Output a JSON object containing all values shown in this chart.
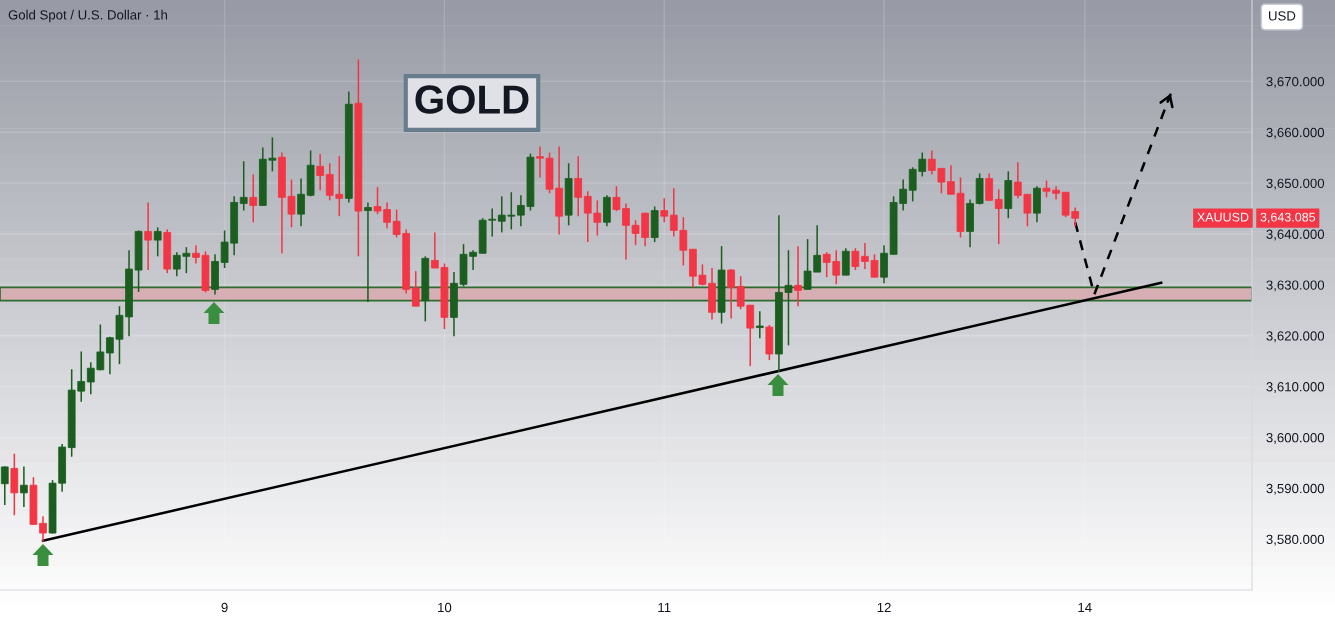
{
  "chart_data": {
    "type": "candlestick",
    "title": "Gold Spot / U.S. Dollar · 1h",
    "categories": [
      null,
      null,
      null,
      null,
      null,
      null,
      null,
      null,
      null,
      null,
      null,
      null,
      null,
      null,
      null,
      null,
      null,
      null,
      null,
      null,
      null,
      null,
      null,
      "9",
      null,
      null,
      null,
      null,
      null,
      null,
      null,
      null,
      null,
      null,
      null,
      null,
      null,
      null,
      null,
      null,
      null,
      null,
      null,
      null,
      null,
      null,
      "10",
      null,
      null,
      null,
      null,
      null,
      null,
      null,
      null,
      null,
      null,
      null,
      null,
      null,
      null,
      null,
      null,
      null,
      null,
      null,
      null,
      null,
      null,
      "11",
      null,
      null,
      null,
      null,
      null,
      null,
      null,
      null,
      null,
      null,
      null,
      null,
      null,
      null,
      null,
      null,
      null,
      null,
      null,
      null,
      null,
      null,
      "12",
      null,
      null,
      null,
      null,
      null,
      null,
      null,
      null,
      null,
      null,
      null,
      null,
      null,
      null,
      null,
      null,
      null,
      null,
      null,
      null,
      "14",
      null,
      null,
      null,
      null,
      null,
      null,
      null,
      null,
      null,
      null,
      null,
      null,
      null,
      null,
      null,
      null,
      null
    ],
    "ohlc": [
      [
        3590.9,
        3594.3,
        3586.7,
        3594.2
      ],
      [
        3593.9,
        3596.8,
        3584.7,
        3589.1
      ],
      [
        3589.1,
        3594.3,
        3586.3,
        3590.6
      ],
      [
        3590.6,
        3592.2,
        3582.8,
        3582.9
      ],
      [
        3583.1,
        3584.5,
        3579.5,
        3581.2
      ],
      [
        3581.2,
        3591.6,
        3581.1,
        3591.0
      ],
      [
        3591.0,
        3598.7,
        3589.3,
        3598.1
      ],
      [
        3598.0,
        3613.4,
        3596.2,
        3609.3
      ],
      [
        3609.1,
        3616.9,
        3607.0,
        3611.0
      ],
      [
        3610.9,
        3614.8,
        3608.5,
        3613.6
      ],
      [
        3613.3,
        3622.2,
        3613.2,
        3616.8
      ],
      [
        3616.6,
        3619.8,
        3612.4,
        3619.6
      ],
      [
        3619.3,
        3625.8,
        3614.4,
        3624.0
      ],
      [
        3623.7,
        3636.8,
        3619.9,
        3633.1
      ],
      [
        3632.9,
        3640.7,
        3628.6,
        3640.5
      ],
      [
        3640.5,
        3646.2,
        3632.9,
        3638.8
      ],
      [
        3638.8,
        3641.3,
        3635.6,
        3640.5
      ],
      [
        3640.3,
        3640.9,
        3632.3,
        3633.1
      ],
      [
        3633.1,
        3636.4,
        3631.7,
        3635.8
      ],
      [
        3635.6,
        3637.4,
        3632.3,
        3636.2
      ],
      [
        3636.2,
        3637.8,
        3634.2,
        3635.4
      ],
      [
        3635.8,
        3636.6,
        3628.5,
        3628.9
      ],
      [
        3629.1,
        3636.0,
        3628.1,
        3634.6
      ],
      [
        3634.4,
        3640.7,
        3633.3,
        3638.4
      ],
      [
        3638.2,
        3647.4,
        3635.8,
        3646.2
      ],
      [
        3646.0,
        3654.3,
        3644.6,
        3647.2
      ],
      [
        3647.2,
        3651.7,
        3642.3,
        3645.6
      ],
      [
        3645.6,
        3657.0,
        3645.6,
        3654.7
      ],
      [
        3654.5,
        3659.0,
        3652.3,
        3654.9
      ],
      [
        3655.1,
        3656.0,
        3636.2,
        3647.2
      ],
      [
        3647.4,
        3650.7,
        3641.3,
        3643.9
      ],
      [
        3643.9,
        3650.9,
        3641.5,
        3647.8
      ],
      [
        3647.6,
        3656.4,
        3647.4,
        3653.5
      ],
      [
        3653.3,
        3655.7,
        3648.6,
        3651.5
      ],
      [
        3651.7,
        3653.9,
        3646.6,
        3647.6
      ],
      [
        3647.8,
        3655.3,
        3643.5,
        3647.0
      ],
      [
        3647.0,
        3668.0,
        3646.2,
        3665.5
      ],
      [
        3665.7,
        3674.3,
        3635.6,
        3644.5
      ],
      [
        3644.6,
        3646.2,
        3626.6,
        3645.2
      ],
      [
        3645.4,
        3649.2,
        3643.9,
        3644.5
      ],
      [
        3644.8,
        3646.2,
        3641.1,
        3642.3
      ],
      [
        3642.5,
        3644.8,
        3639.3,
        3639.9
      ],
      [
        3640.1,
        3640.9,
        3628.3,
        3629.1
      ],
      [
        3629.4,
        3632.7,
        3625.8,
        3625.8
      ],
      [
        3626.9,
        3635.6,
        3622.8,
        3635.2
      ],
      [
        3634.8,
        3640.3,
        3633.3,
        3633.3
      ],
      [
        3633.4,
        3634.2,
        3621.3,
        3623.6
      ],
      [
        3623.6,
        3632.5,
        3619.9,
        3630.3
      ],
      [
        3630.1,
        3638.0,
        3629.7,
        3636.0
      ],
      [
        3635.6,
        3636.8,
        3632.9,
        3636.4
      ],
      [
        3636.2,
        3643.1,
        3636.2,
        3642.7
      ],
      [
        3642.7,
        3645.0,
        3639.5,
        3642.9
      ],
      [
        3642.5,
        3647.4,
        3640.3,
        3643.7
      ],
      [
        3643.5,
        3648.2,
        3640.9,
        3643.7
      ],
      [
        3643.7,
        3647.6,
        3641.5,
        3645.6
      ],
      [
        3645.4,
        3655.8,
        3644.6,
        3655.1
      ],
      [
        3655.2,
        3657.2,
        3651.1,
        3654.9
      ],
      [
        3654.9,
        3656.0,
        3648.0,
        3648.8
      ],
      [
        3649.0,
        3657.2,
        3639.9,
        3643.5
      ],
      [
        3643.7,
        3653.9,
        3641.7,
        3650.9
      ],
      [
        3650.9,
        3655.3,
        3643.5,
        3647.2
      ],
      [
        3647.4,
        3648.4,
        3638.4,
        3644.1
      ],
      [
        3644.1,
        3646.6,
        3639.7,
        3642.3
      ],
      [
        3642.3,
        3647.6,
        3641.5,
        3647.2
      ],
      [
        3647.2,
        3649.4,
        3644.5,
        3644.8
      ],
      [
        3645.0,
        3646.0,
        3635.0,
        3641.7
      ],
      [
        3641.7,
        3642.7,
        3637.8,
        3640.1
      ],
      [
        3644.1,
        3644.1,
        3637.6,
        3639.3
      ],
      [
        3639.3,
        3645.4,
        3638.4,
        3644.6
      ],
      [
        3644.6,
        3647.0,
        3642.3,
        3643.5
      ],
      [
        3643.7,
        3649.0,
        3639.5,
        3640.7
      ],
      [
        3640.7,
        3643.3,
        3633.8,
        3636.8
      ],
      [
        3637.0,
        3637.0,
        3629.5,
        3631.7
      ],
      [
        3631.9,
        3634.0,
        3629.9,
        3630.1
      ],
      [
        3630.3,
        3633.3,
        3623.2,
        3624.6
      ],
      [
        3624.6,
        3637.6,
        3622.4,
        3632.9
      ],
      [
        3632.9,
        3633.1,
        3623.4,
        3629.5
      ],
      [
        3629.7,
        3631.7,
        3625.2,
        3625.8
      ],
      [
        3626.0,
        3626.0,
        3614.0,
        3621.5
      ],
      [
        3621.6,
        3624.8,
        3619.5,
        3621.9
      ],
      [
        3621.7,
        3622.1,
        3615.2,
        3616.4
      ],
      [
        3616.4,
        3643.7,
        3612.8,
        3628.5
      ],
      [
        3628.5,
        3636.8,
        3618.1,
        3629.9
      ],
      [
        3629.9,
        3637.6,
        3625.8,
        3628.9
      ],
      [
        3629.1,
        3639.0,
        3629.1,
        3632.7
      ],
      [
        3632.5,
        3641.7,
        3632.5,
        3635.8
      ],
      [
        3636.0,
        3636.4,
        3631.5,
        3634.4
      ],
      [
        3634.6,
        3636.8,
        3630.1,
        3631.9
      ],
      [
        3631.9,
        3637.2,
        3631.9,
        3636.6
      ],
      [
        3636.6,
        3637.2,
        3632.9,
        3633.6
      ],
      [
        3635.6,
        3638.2,
        3633.1,
        3634.6
      ],
      [
        3634.8,
        3636.0,
        3631.5,
        3631.5
      ],
      [
        3631.5,
        3637.8,
        3630.3,
        3636.2
      ],
      [
        3636.0,
        3647.4,
        3636.0,
        3646.2
      ],
      [
        3646.0,
        3650.7,
        3644.6,
        3648.8
      ],
      [
        3648.6,
        3653.1,
        3646.4,
        3652.7
      ],
      [
        3652.3,
        3656.0,
        3651.3,
        3654.7
      ],
      [
        3654.7,
        3656.4,
        3651.7,
        3652.5
      ],
      [
        3652.9,
        3652.9,
        3648.0,
        3650.2
      ],
      [
        3650.3,
        3653.5,
        3647.8,
        3647.8
      ],
      [
        3648.0,
        3651.1,
        3639.3,
        3640.5
      ],
      [
        3640.5,
        3646.8,
        3637.4,
        3646.0
      ],
      [
        3646.0,
        3651.9,
        3645.8,
        3650.9
      ],
      [
        3650.9,
        3651.9,
        3646.6,
        3646.6
      ],
      [
        3646.8,
        3648.8,
        3638.0,
        3645.0
      ],
      [
        3645.0,
        3652.3,
        3643.1,
        3650.5
      ],
      [
        3650.2,
        3654.1,
        3647.0,
        3647.6
      ],
      [
        3647.8,
        3647.8,
        3641.5,
        3644.1
      ],
      [
        3644.1,
        3649.4,
        3642.3,
        3649.0
      ],
      [
        3649.0,
        3650.5,
        3647.2,
        3648.4
      ],
      [
        3648.6,
        3649.4,
        3646.8,
        3648.0
      ],
      [
        3648.2,
        3648.2,
        3643.3,
        3643.7
      ],
      [
        3644.4,
        3645.2,
        3641.5,
        3643.1
      ],
      null,
      null,
      null,
      null,
      null,
      null,
      null,
      null,
      null,
      null,
      null,
      null,
      null,
      null,
      null,
      null,
      null,
      null
    ],
    "colors": [
      "#1b5e20",
      "#f23645",
      "#1b5e20",
      "#f23645",
      "#f23645",
      "#1b5e20",
      "#1b5e20",
      "#1b5e20",
      "#1b5e20",
      "#1b5e20",
      "#1b5e20",
      "#1b5e20",
      "#1b5e20",
      "#1b5e20",
      "#1b5e20",
      "#f23645",
      "#1b5e20",
      "#f23645",
      "#1b5e20",
      "#1b5e20",
      "#f23645",
      "#f23645",
      "#1b5e20",
      "#1b5e20",
      "#1b5e20",
      "#1b5e20",
      "#f23645",
      "#1b5e20",
      "#1b5e20",
      "#f23645",
      "#f23645",
      "#1b5e20",
      "#1b5e20",
      "#f23645",
      "#f23645",
      "#f23645",
      "#1b5e20",
      "#f23645",
      "#1b5e20",
      "#f23645",
      "#f23645",
      "#f23645",
      "#f23645",
      "#f23645",
      "#1b5e20",
      "#f23645",
      "#f23645",
      "#1b5e20",
      "#1b5e20",
      "#1b5e20",
      "#1b5e20",
      "#1b5e20",
      "#1b5e20",
      "#1b5e20",
      "#1b5e20",
      "#1b5e20",
      "#f23645",
      "#f23645",
      "#f23645",
      "#1b5e20",
      "#f23645",
      "#f23645",
      "#f23645",
      "#1b5e20",
      "#f23645",
      "#f23645",
      "#f23645",
      "#f23645",
      "#1b5e20",
      "#f23645",
      "#f23645",
      "#f23645",
      "#f23645",
      "#f23645",
      "#f23645",
      "#1b5e20",
      "#f23645",
      "#f23645",
      "#f23645",
      "#1b5e20",
      "#f23645",
      "#1b5e20",
      "#1b5e20",
      "#f23645",
      "#1b5e20",
      "#1b5e20",
      "#f23645",
      "#f23645",
      "#1b5e20",
      "#f23645",
      "#f23645",
      "#f23645",
      "#1b5e20",
      "#1b5e20",
      "#1b5e20",
      "#1b5e20",
      "#1b5e20",
      "#f23645",
      "#f23645",
      "#f23645",
      "#f23645",
      "#1b5e20",
      "#1b5e20",
      "#f23645",
      "#f23645",
      "#1b5e20",
      "#f23645",
      "#f23645",
      "#1b5e20",
      "#f23645",
      "#f23645",
      "#f23645",
      "#f23645",
      null,
      null,
      null,
      null,
      null,
      null,
      null,
      null,
      null,
      null,
      null,
      null,
      null,
      null,
      null,
      null,
      null,
      null
    ],
    "series": [
      {
        "type": "line",
        "color": "#000000",
        "line_style": "solid",
        "values": [
          null,
          null,
          null,
          null,
          3579.7,
          null,
          null,
          null,
          null,
          null,
          null,
          null,
          null,
          null,
          null,
          null,
          null,
          null,
          null,
          null,
          null,
          null,
          null,
          null,
          null,
          null,
          null,
          null,
          null,
          null,
          null,
          null,
          null,
          null,
          null,
          null,
          null,
          null,
          null,
          null,
          null,
          null,
          null,
          null,
          null,
          null,
          null,
          null,
          null,
          null,
          null,
          null,
          null,
          null,
          null,
          null,
          null,
          null,
          null,
          null,
          null,
          null,
          null,
          null,
          null,
          null,
          null,
          null,
          null,
          null,
          null,
          null,
          null,
          null,
          null,
          null,
          null,
          null,
          null,
          null,
          null,
          null,
          null,
          null,
          null,
          null,
          null,
          null,
          null,
          null,
          null,
          null,
          null,
          null,
          null,
          null,
          null,
          null,
          null,
          null,
          null,
          null,
          null,
          null,
          null,
          null,
          null,
          null,
          null,
          null,
          null,
          null,
          null,
          null,
          null,
          null,
          null,
          null,
          null,
          null,
          null,
          3630.4,
          null,
          null,
          null,
          null,
          null,
          null,
          null,
          null,
          null
        ]
      },
      {
        "type": "line",
        "color": "#000000",
        "line_style": "dashed",
        "values": [
          null,
          null,
          null,
          null,
          null,
          null,
          null,
          null,
          null,
          null,
          null,
          null,
          null,
          null,
          null,
          null,
          null,
          null,
          null,
          null,
          null,
          null,
          null,
          null,
          null,
          null,
          null,
          null,
          null,
          null,
          null,
          null,
          null,
          null,
          null,
          null,
          null,
          null,
          null,
          null,
          null,
          null,
          null,
          null,
          null,
          null,
          null,
          null,
          null,
          null,
          null,
          null,
          null,
          null,
          null,
          null,
          null,
          null,
          null,
          null,
          null,
          null,
          null,
          null,
          null,
          null,
          null,
          null,
          null,
          null,
          null,
          null,
          null,
          null,
          null,
          null,
          null,
          null,
          null,
          null,
          null,
          null,
          null,
          null,
          null,
          null,
          null,
          null,
          null,
          null,
          null,
          null,
          null,
          null,
          null,
          null,
          null,
          null,
          null,
          null,
          null,
          null,
          null,
          null,
          null,
          null,
          null,
          null,
          null,
          null,
          null,
          null,
          3642.3,
          null,
          3628.1,
          null,
          null,
          null,
          null,
          null,
          null,
          null,
          3667.6,
          null,
          null,
          null,
          null,
          null,
          null,
          null,
          null
        ]
      }
    ],
    "bands": [
      {
        "axis": "y",
        "from": 3626.9,
        "to": 3629.5,
        "color": "#d6afb5"
      }
    ],
    "annotations": [
      "GOLD",
      "XAUUSD",
      "3,643.085",
      "USD"
    ],
    "ylim": [
      3570,
      3686
    ],
    "yticks": [
      {
        "value": 3580,
        "label": "3,580.000"
      },
      {
        "value": 3590,
        "label": "3,590.000"
      },
      {
        "value": 3600,
        "label": "3,600.000"
      },
      {
        "value": 3610,
        "label": "3,610.000"
      },
      {
        "value": 3620,
        "label": "3,620.000"
      },
      {
        "value": 3630,
        "label": "3,630.000"
      },
      {
        "value": 3640,
        "label": "3,640.000"
      },
      {
        "value": 3650,
        "label": "3,650.000"
      },
      {
        "value": 3660,
        "label": "3,660.000"
      },
      {
        "value": 3670,
        "label": "3,670.000"
      }
    ],
    "grid": true
  }
}
